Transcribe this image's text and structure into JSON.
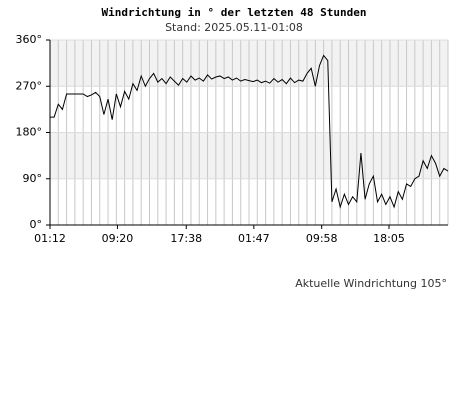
{
  "chart_data": {
    "type": "line",
    "title": "Windrichtung in ° der letzten 48 Stunden",
    "subtitle": "Stand: 2025.05.11-01:08",
    "annotation": "Aktuelle Windrichtung 105°",
    "xlim": [
      0,
      48
    ],
    "xticks": [
      {
        "value": 0,
        "label": "01:12"
      },
      {
        "value": 8.133,
        "label": "09:20"
      },
      {
        "value": 16.433,
        "label": "17:38"
      },
      {
        "value": 24.583,
        "label": "01:47"
      },
      {
        "value": 32.767,
        "label": "09:58"
      },
      {
        "value": 40.883,
        "label": "18:05"
      }
    ],
    "ylim": [
      0,
      360
    ],
    "yticks": [
      {
        "value": 0,
        "label": "0°"
      },
      {
        "value": 90,
        "label": "90°"
      },
      {
        "value": 180,
        "label": "180°"
      },
      {
        "value": 270,
        "label": "270°"
      },
      {
        "value": 360,
        "label": "360°"
      }
    ],
    "grid": true,
    "x": [
      0,
      0.5,
      1,
      1.5,
      2,
      2.5,
      3,
      3.5,
      4,
      4.5,
      5,
      5.5,
      6,
      6.5,
      7,
      7.5,
      8,
      8.5,
      9,
      9.5,
      10,
      10.5,
      11,
      11.5,
      12,
      12.5,
      13,
      13.5,
      14,
      14.5,
      15,
      15.5,
      16,
      16.5,
      17,
      17.5,
      18,
      18.5,
      19,
      19.5,
      20,
      20.5,
      21,
      21.5,
      22,
      22.5,
      23,
      23.5,
      24,
      24.5,
      25,
      25.5,
      26,
      26.5,
      27,
      27.5,
      28,
      28.5,
      29,
      29.5,
      30,
      30.5,
      31,
      31.5,
      32,
      32.5,
      33,
      33.5,
      34,
      34.5,
      35,
      35.5,
      36,
      36.5,
      37,
      37.5,
      38,
      38.5,
      39,
      39.5,
      40,
      40.5,
      41,
      41.5,
      42,
      42.5,
      43,
      43.5,
      44,
      44.5,
      45,
      45.5,
      46,
      46.5,
      47,
      47.5,
      48
    ],
    "series": [
      {
        "color": "#000000",
        "values": [
          210,
          210,
          235,
          225,
          255,
          255,
          255,
          255,
          255,
          250,
          253,
          258,
          250,
          215,
          245,
          205,
          255,
          230,
          260,
          245,
          275,
          262,
          290,
          270,
          285,
          295,
          278,
          285,
          275,
          288,
          280,
          272,
          285,
          278,
          290,
          282,
          286,
          280,
          292,
          284,
          288,
          290,
          285,
          288,
          282,
          286,
          280,
          283,
          281,
          279,
          282,
          277,
          280,
          276,
          285,
          278,
          283,
          275,
          286,
          277,
          282,
          280,
          295,
          305,
          270,
          310,
          330,
          320,
          45,
          70,
          35,
          60,
          40,
          55,
          45,
          140,
          50,
          80,
          95,
          45,
          60,
          40,
          55,
          35,
          65,
          50,
          80,
          75,
          90,
          95,
          125,
          110,
          135,
          120,
          95,
          110,
          105
        ]
      }
    ]
  }
}
